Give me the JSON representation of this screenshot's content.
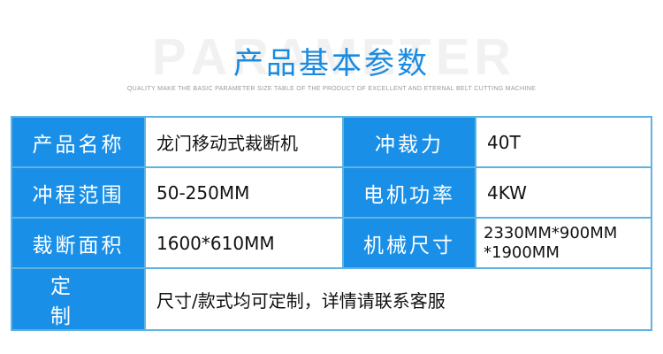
{
  "header": {
    "watermark": "PARAMETER",
    "title": "产品基本参数",
    "subtitle": "QUALITY MAKE THE BASIC PARAMETER SIZE TABLE OF THE PRODUCT OF EXCELLENT AND ETERNAL BELT CUTTING MACHINE"
  },
  "colors": {
    "accent": "#1a8fe8",
    "border": "#5fb3e0"
  },
  "table": {
    "rows": [
      {
        "label1": "产品名称",
        "value1": "龙门移动式裁断机",
        "label2": "冲裁力",
        "value2": "40T"
      },
      {
        "label1": "冲程范围",
        "value1": "50-250MM",
        "label2": "电机功率",
        "value2": "4KW"
      },
      {
        "label1": "裁断面积",
        "value1": "1600*610MM",
        "label2": "机械尺寸",
        "value2a": "2330MM*900MM",
        "value2b": "*1900MM"
      }
    ],
    "last": {
      "label": "定  制",
      "value": "尺寸/款式均可定制，详情请联系客服"
    }
  }
}
